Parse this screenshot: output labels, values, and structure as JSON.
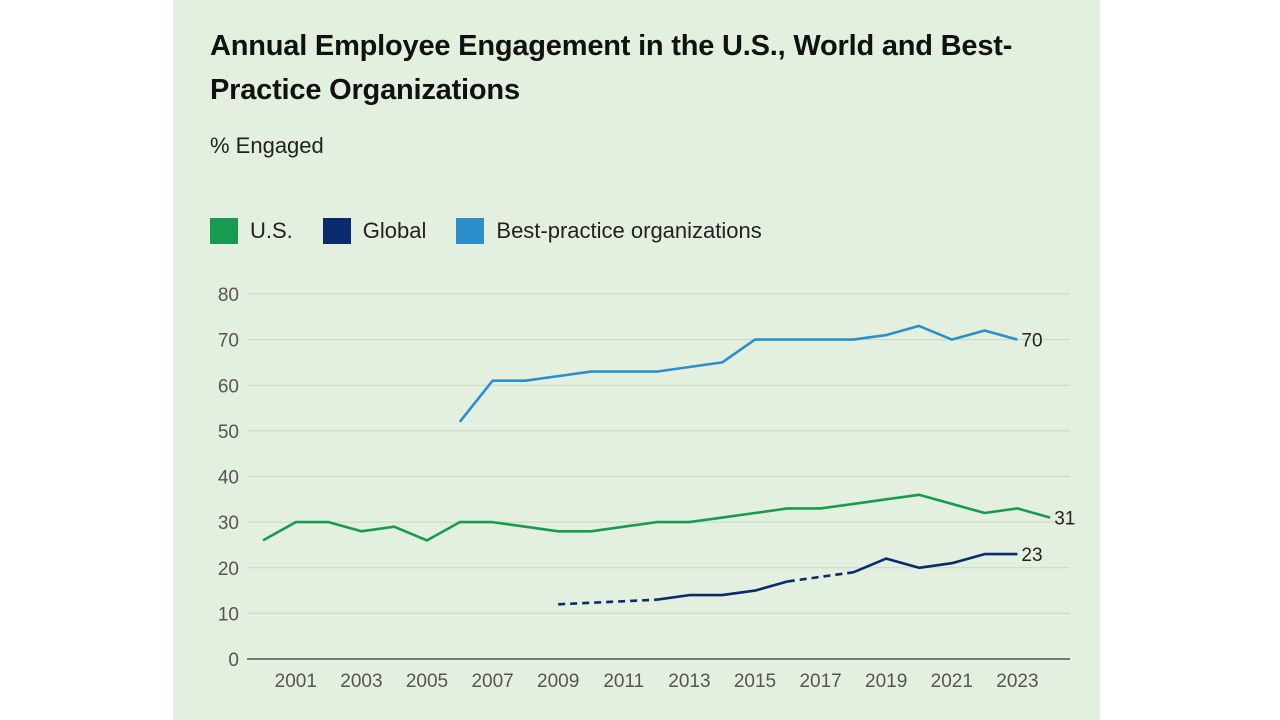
{
  "chart_data": {
    "type": "line",
    "title": "Annual Employee Engagement in the U.S., World and Best-Practice Organizations",
    "subtitle": "% Engaged",
    "xlabel": "",
    "ylabel": "",
    "ylim": [
      0,
      80
    ],
    "yticks": [
      0,
      10,
      20,
      30,
      40,
      50,
      60,
      70,
      80
    ],
    "xlim": [
      2000,
      2024
    ],
    "xticks": [
      2001,
      2003,
      2005,
      2007,
      2009,
      2011,
      2013,
      2015,
      2017,
      2019,
      2021,
      2023
    ],
    "grid": true,
    "legend_position": "top-left",
    "series": [
      {
        "name": "U.S.",
        "color": "#1a9a50",
        "x": [
          2000,
          2001,
          2002,
          2003,
          2004,
          2005,
          2006,
          2007,
          2008,
          2009,
          2010,
          2011,
          2012,
          2013,
          2014,
          2015,
          2016,
          2017,
          2018,
          2019,
          2020,
          2021,
          2022,
          2023,
          2024
        ],
        "values": [
          26,
          30,
          30,
          28,
          29,
          26,
          30,
          30,
          29,
          28,
          28,
          29,
          30,
          30,
          31,
          32,
          33,
          33,
          34,
          35,
          36,
          34,
          32,
          33,
          31
        ],
        "end_label": "31"
      },
      {
        "name": "Global",
        "color": "#0b2a6b",
        "x": [
          2009,
          2012,
          2013,
          2014,
          2015,
          2016,
          2018,
          2019,
          2020,
          2021,
          2022,
          2023
        ],
        "values": [
          12,
          13,
          14,
          14,
          15,
          17,
          19,
          22,
          20,
          21,
          23,
          23
        ],
        "dashed_segments": [
          [
            2009,
            2012
          ],
          [
            2016,
            2018
          ]
        ],
        "end_label": "23"
      },
      {
        "name": "Best-practice organizations",
        "color": "#2b8fcc",
        "x": [
          2006,
          2007,
          2008,
          2009,
          2010,
          2011,
          2012,
          2013,
          2014,
          2015,
          2016,
          2017,
          2018,
          2019,
          2020,
          2021,
          2022,
          2023
        ],
        "values": [
          52,
          61,
          61,
          62,
          63,
          63,
          63,
          64,
          65,
          70,
          70,
          70,
          70,
          71,
          73,
          70,
          72,
          70
        ],
        "end_label": "70"
      }
    ]
  }
}
